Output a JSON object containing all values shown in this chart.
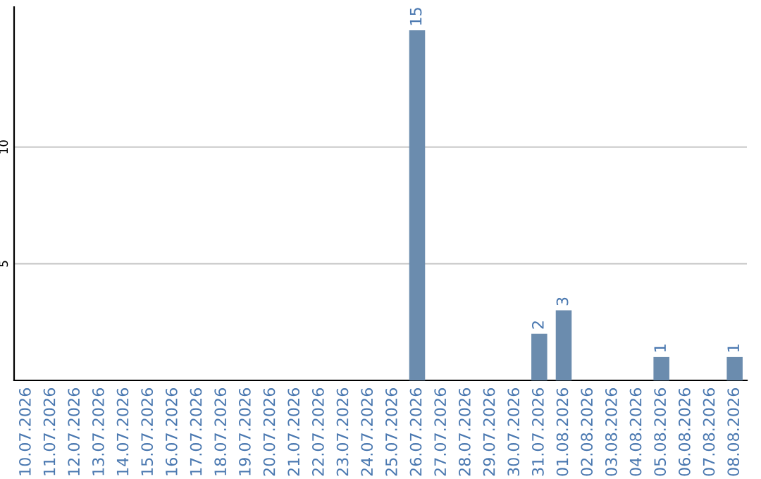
{
  "chart_data": {
    "type": "bar",
    "categories": [
      "10.07.2026",
      "11.07.2026",
      "12.07.2026",
      "13.07.2026",
      "14.07.2026",
      "15.07.2026",
      "16.07.2026",
      "17.07.2026",
      "18.07.2026",
      "19.07.2026",
      "20.07.2026",
      "21.07.2026",
      "22.07.2026",
      "23.07.2026",
      "24.07.2026",
      "25.07.2026",
      "26.07.2026",
      "27.07.2026",
      "28.07.2026",
      "29.07.2026",
      "30.07.2026",
      "31.07.2026",
      "01.08.2026",
      "02.08.2026",
      "03.08.2026",
      "04.08.2026",
      "05.08.2026",
      "06.08.2026",
      "07.08.2026",
      "08.08.2026"
    ],
    "values": [
      0,
      0,
      0,
      0,
      0,
      0,
      0,
      0,
      0,
      0,
      0,
      0,
      0,
      0,
      0,
      0,
      15,
      0,
      0,
      0,
      0,
      2,
      3,
      0,
      0,
      0,
      1,
      0,
      0,
      1
    ],
    "value_labels": [
      null,
      null,
      null,
      null,
      null,
      null,
      null,
      null,
      null,
      null,
      null,
      null,
      null,
      null,
      null,
      null,
      "15",
      null,
      null,
      null,
      null,
      "2",
      "3",
      null,
      null,
      null,
      "1",
      null,
      null,
      "1"
    ],
    "color": "#6b8cae",
    "ylim": [
      0,
      16
    ],
    "yticks": [
      5,
      10
    ],
    "grid": "y"
  }
}
